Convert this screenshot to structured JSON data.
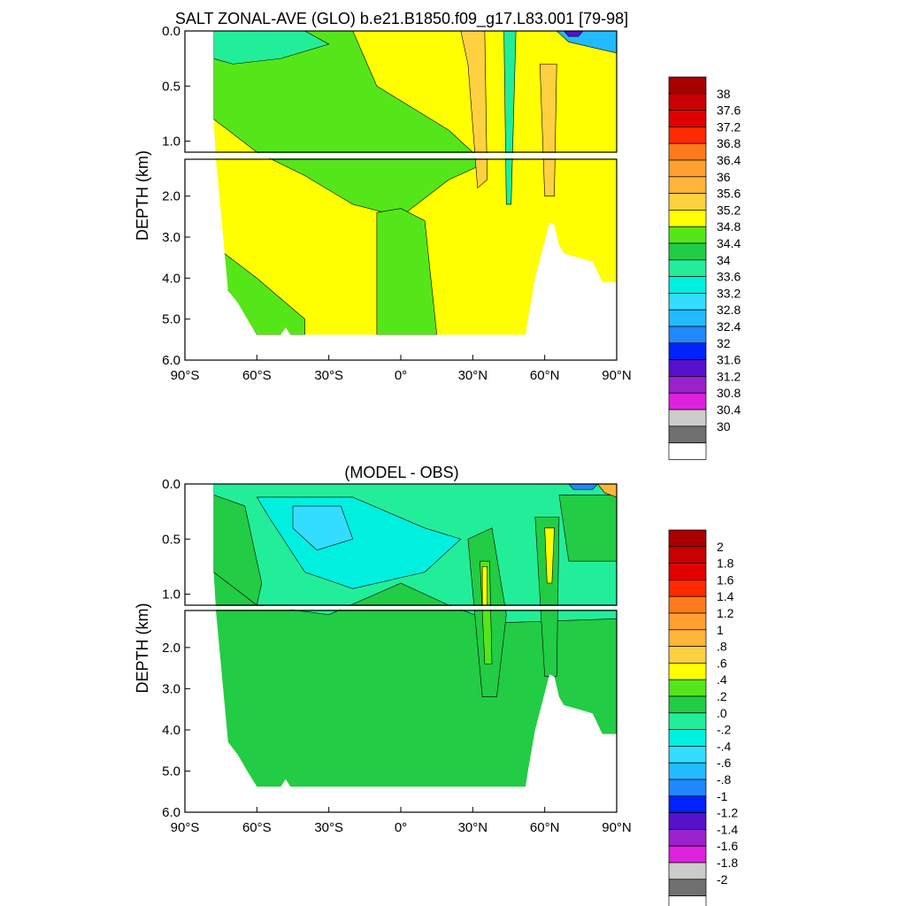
{
  "chart_data": [
    {
      "type": "heatmap",
      "title": "SALT ZONAL-AVE (GLO) b.e21.B1850.f09_g17.L83.001 [79-98]",
      "xlabel": "",
      "ylabel": "DEPTH (km)",
      "xlim": [
        -90,
        90
      ],
      "ylim": [
        0,
        6
      ],
      "x_ticks": [
        "90°S",
        "60°S",
        "30°S",
        "0°",
        "30°N",
        "60°N",
        "90°N"
      ],
      "y_ticks": [
        "0.0",
        "0.5",
        "1.0",
        "2.0",
        "3.0",
        "4.0",
        "5.0",
        "6.0"
      ],
      "colorbar": {
        "labels": [
          "38",
          "37.6",
          "37.2",
          "36.8",
          "36.4",
          "36",
          "35.6",
          "35.2",
          "34.8",
          "34.4",
          "34",
          "33.6",
          "33.2",
          "32.8",
          "32.4",
          "32",
          "31.6",
          "31.2",
          "30.8",
          "30.4",
          "30"
        ],
        "colors": [
          "#a80000",
          "#c80000",
          "#e00000",
          "#ff2a00",
          "#ff7a1a",
          "#ffa030",
          "#ffb43a",
          "#ffd040",
          "#ffff00",
          "#55e61a",
          "#22cc44",
          "#22ee99",
          "#00f0e0",
          "#33ddff",
          "#22bbff",
          "#2288ff",
          "#0022ff",
          "#5511cc",
          "#9922cc",
          "#dd22dd",
          "#cccccc",
          "#707070",
          "#ffffff"
        ]
      },
      "bathymetry": [
        [
          -78,
          0.8
        ],
        [
          -77,
          1.15
        ],
        [
          -72,
          4.3
        ],
        [
          -68,
          4.6
        ],
        [
          -64,
          5.0
        ],
        [
          -60,
          5.38
        ],
        [
          -50,
          5.38
        ],
        [
          -48,
          5.2
        ],
        [
          -46,
          5.38
        ],
        [
          52,
          5.38
        ],
        [
          53,
          5.0
        ],
        [
          56,
          4.0
        ],
        [
          60,
          3.1
        ],
        [
          62,
          2.65
        ],
        [
          64,
          2.7
        ],
        [
          66,
          3.2
        ],
        [
          68,
          3.4
        ],
        [
          74,
          3.5
        ],
        [
          80,
          3.6
        ],
        [
          84,
          4.1
        ],
        [
          90,
          4.1
        ]
      ],
      "regions": [
        {
          "value": 34.6,
          "points": [
            [
              -78,
              0
            ],
            [
              -20,
              0
            ],
            [
              -10,
              0.5
            ],
            [
              20,
              0.9
            ],
            [
              35,
              1.2
            ],
            [
              20,
              1.6
            ],
            [
              0,
              2.5
            ],
            [
              -20,
              2.2
            ],
            [
              -40,
              1.5
            ],
            [
              -60,
              1.1
            ],
            [
              -78,
              0.8
            ]
          ]
        },
        {
          "value": 33.8,
          "points": [
            [
              -78,
              0
            ],
            [
              -40,
              0
            ],
            [
              -30,
              0.12
            ],
            [
              -50,
              0.25
            ],
            [
              -70,
              0.3
            ],
            [
              -78,
              0.25
            ]
          ]
        },
        {
          "value": 34.6,
          "points": [
            [
              -78,
              3.2
            ],
            [
              -60,
              4.0
            ],
            [
              -40,
              5.0
            ],
            [
              -40,
              5.38
            ],
            [
              -60,
              5.38
            ],
            [
              -72,
              4.3
            ]
          ]
        },
        {
          "value": 34.6,
          "points": [
            [
              -10,
              2.4
            ],
            [
              0,
              2.3
            ],
            [
              10,
              2.6
            ],
            [
              15,
              5.38
            ],
            [
              -10,
              5.38
            ]
          ]
        },
        {
          "value": 35.4,
          "points": [
            [
              25,
              0.0
            ],
            [
              35,
              0.0
            ],
            [
              36,
              1.6
            ],
            [
              32,
              1.8
            ],
            [
              28,
              0.3
            ]
          ]
        },
        {
          "value": 35.4,
          "points": [
            [
              58,
              0.3
            ],
            [
              65,
              0.3
            ],
            [
              64,
              2.0
            ],
            [
              60,
              2.0
            ]
          ]
        },
        {
          "value": 33.8,
          "points": [
            [
              43,
              0.0
            ],
            [
              48,
              0.0
            ],
            [
              46,
              2.2
            ],
            [
              44,
              2.2
            ]
          ]
        },
        {
          "value": 32.6,
          "points": [
            [
              65,
              0.0
            ],
            [
              90,
              0.0
            ],
            [
              90,
              0.2
            ],
            [
              70,
              0.1
            ]
          ]
        },
        {
          "value": 31.4,
          "points": [
            [
              68,
              0.0
            ],
            [
              76,
              0.0
            ],
            [
              74,
              0.05
            ],
            [
              70,
              0.05
            ]
          ]
        }
      ]
    },
    {
      "type": "heatmap",
      "title": "(MODEL - OBS)",
      "xlabel": "",
      "ylabel": "DEPTH (km)",
      "xlim": [
        -90,
        90
      ],
      "ylim": [
        0,
        6
      ],
      "x_ticks": [
        "90°S",
        "60°S",
        "30°S",
        "0°",
        "30°N",
        "60°N",
        "90°N"
      ],
      "y_ticks": [
        "0.0",
        "0.5",
        "1.0",
        "2.0",
        "3.0",
        "4.0",
        "5.0",
        "6.0"
      ],
      "colorbar": {
        "labels": [
          "2",
          "1.8",
          "1.6",
          "1.4",
          "1.2",
          "1",
          ".8",
          ".6",
          ".4",
          ".2",
          ".0",
          "-.2",
          "-.4",
          "-.6",
          "-.8",
          "-1",
          "-1.2",
          "-1.4",
          "-1.6",
          "-1.8",
          "-2"
        ],
        "colors": [
          "#a80000",
          "#c80000",
          "#e00000",
          "#ff2a00",
          "#ff7a1a",
          "#ffa030",
          "#ffb43a",
          "#ffd040",
          "#ffff00",
          "#55e61a",
          "#22cc44",
          "#22ee99",
          "#00f0e0",
          "#33ddff",
          "#22bbff",
          "#2288ff",
          "#0022ff",
          "#5511cc",
          "#9922cc",
          "#dd22dd",
          "#cccccc",
          "#707070",
          "#ffffff"
        ]
      },
      "bathymetry": [
        [
          -78,
          0.8
        ],
        [
          -77,
          1.15
        ],
        [
          -72,
          4.3
        ],
        [
          -68,
          4.6
        ],
        [
          -64,
          5.0
        ],
        [
          -60,
          5.38
        ],
        [
          -50,
          5.38
        ],
        [
          -48,
          5.2
        ],
        [
          -46,
          5.38
        ],
        [
          52,
          5.38
        ],
        [
          53,
          5.0
        ],
        [
          56,
          4.0
        ],
        [
          60,
          3.1
        ],
        [
          62,
          2.65
        ],
        [
          64,
          2.7
        ],
        [
          66,
          3.2
        ],
        [
          68,
          3.4
        ],
        [
          74,
          3.5
        ],
        [
          80,
          3.6
        ],
        [
          84,
          4.1
        ],
        [
          90,
          4.1
        ]
      ],
      "regions": [
        {
          "value": -0.1,
          "points": [
            [
              -78,
              0
            ],
            [
              90,
              0
            ],
            [
              90,
              1.3
            ],
            [
              40,
              1.4
            ],
            [
              20,
              1.1
            ],
            [
              0,
              0.9
            ],
            [
              -30,
              1.2
            ],
            [
              -60,
              1.1
            ],
            [
              -78,
              0.8
            ]
          ]
        },
        {
          "value": 0.1,
          "points": [
            [
              -78,
              0.1
            ],
            [
              -65,
              0.2
            ],
            [
              -58,
              0.9
            ],
            [
              -60,
              1.1
            ],
            [
              -78,
              0.8
            ]
          ]
        },
        {
          "value": -0.3,
          "points": [
            [
              -60,
              0.12
            ],
            [
              -20,
              0.12
            ],
            [
              10,
              0.4
            ],
            [
              25,
              0.5
            ],
            [
              10,
              0.8
            ],
            [
              -20,
              0.95
            ],
            [
              -40,
              0.8
            ],
            [
              -55,
              0.3
            ]
          ]
        },
        {
          "value": -0.5,
          "points": [
            [
              -45,
              0.2
            ],
            [
              -25,
              0.2
            ],
            [
              -20,
              0.5
            ],
            [
              -35,
              0.6
            ],
            [
              -45,
              0.4
            ]
          ]
        },
        {
          "value": 0.1,
          "points": [
            [
              28,
              0.5
            ],
            [
              38,
              0.4
            ],
            [
              44,
              1.2
            ],
            [
              40,
              3.2
            ],
            [
              34,
              3.2
            ]
          ]
        },
        {
          "value": 0.3,
          "points": [
            [
              33,
              0.7
            ],
            [
              37,
              0.7
            ],
            [
              38,
              2.4
            ],
            [
              35,
              2.4
            ]
          ]
        },
        {
          "value": 0.5,
          "points": [
            [
              34,
              0.75
            ],
            [
              36,
              0.75
            ],
            [
              36,
              1.1
            ],
            [
              34,
              1.1
            ]
          ]
        },
        {
          "value": 0.1,
          "points": [
            [
              56,
              0.3
            ],
            [
              66,
              0.3
            ],
            [
              65,
              2.7
            ],
            [
              60,
              2.7
            ]
          ]
        },
        {
          "value": 0.5,
          "points": [
            [
              60,
              0.4
            ],
            [
              64,
              0.4
            ],
            [
              63,
              0.9
            ],
            [
              61,
              0.9
            ]
          ]
        },
        {
          "value": 0.1,
          "points": [
            [
              66,
              0.1
            ],
            [
              90,
              0.1
            ],
            [
              90,
              0.7
            ],
            [
              70,
              0.7
            ]
          ]
        },
        {
          "value": -0.9,
          "points": [
            [
              70,
              0.0
            ],
            [
              82,
              0.0
            ],
            [
              80,
              0.05
            ],
            [
              72,
              0.05
            ]
          ]
        },
        {
          "value": 0.9,
          "points": [
            [
              82,
              0.0
            ],
            [
              90,
              0.0
            ],
            [
              90,
              0.12
            ],
            [
              85,
              0.08
            ]
          ]
        }
      ]
    }
  ]
}
